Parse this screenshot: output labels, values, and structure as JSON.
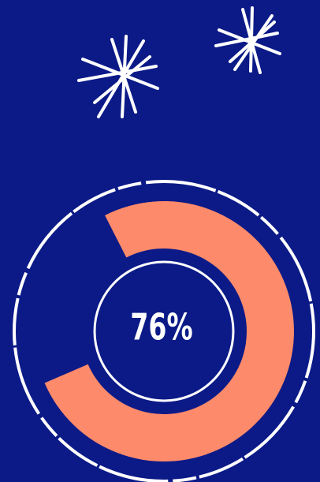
{
  "chart_data": {
    "type": "donut",
    "values": [
      76
    ],
    "value_labels": [
      "76%"
    ],
    "color": "#fd8a6a"
  }
}
